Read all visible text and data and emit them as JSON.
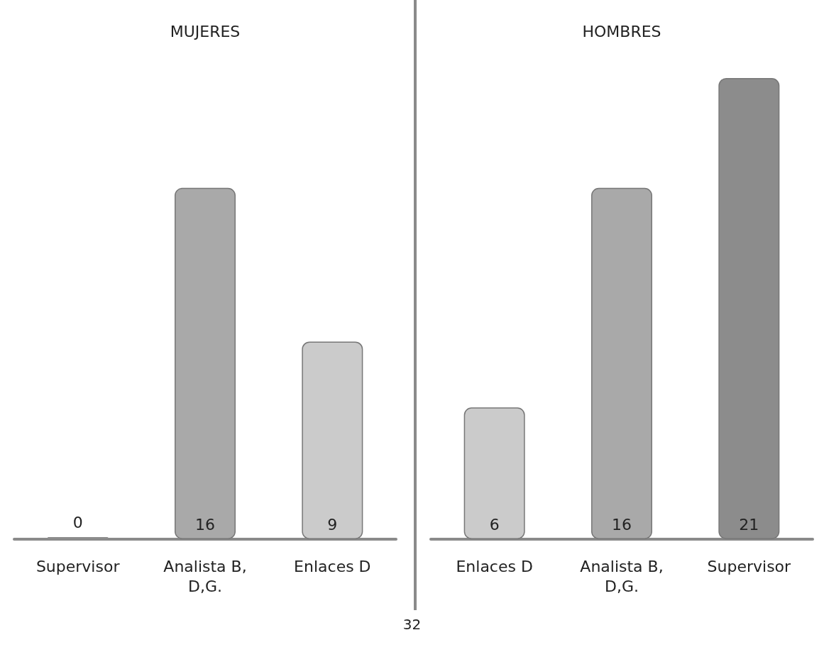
{
  "chart_data": [
    {
      "type": "bar",
      "title": "MUJERES",
      "categories": [
        "Supervisor",
        "Analista B,D,G.",
        "Enlaces D"
      ],
      "values": [
        0,
        16,
        9
      ],
      "colors": [
        "#8c8c8c",
        "#a9a9a9",
        "#cbcbcb"
      ],
      "data_labels": true,
      "tick_labels": "x"
    },
    {
      "type": "bar",
      "title": "HOMBRES",
      "categories": [
        "Enlaces D",
        "Analista B,D,G.",
        "Supervisor"
      ],
      "values": [
        6,
        16,
        21
      ],
      "colors": [
        "#cbcbcb",
        "#a9a9a9",
        "#8c8c8c"
      ],
      "data_labels": true,
      "tick_labels": "x",
      "annotations": [
        "32"
      ]
    }
  ]
}
